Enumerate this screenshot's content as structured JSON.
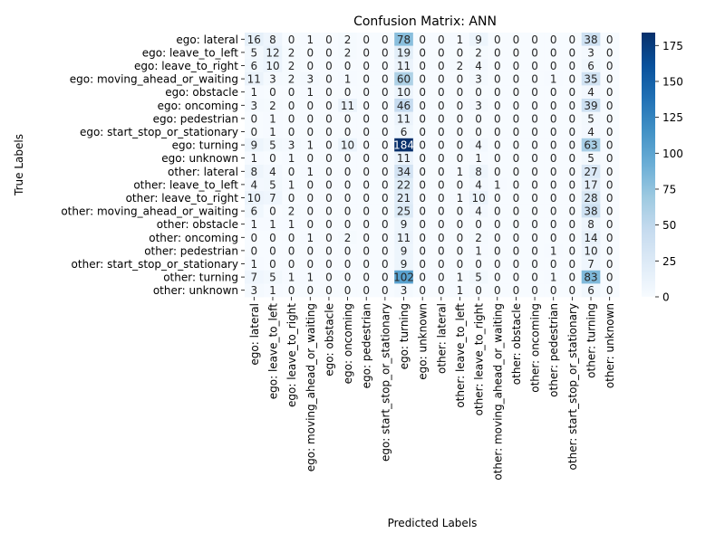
{
  "chart_data": {
    "type": "heatmap",
    "title": "Confusion Matrix: ANN",
    "xlabel": "Predicted Labels",
    "ylabel": "True Labels",
    "labels": [
      "ego: lateral",
      "ego: leave_to_left",
      "ego: leave_to_right",
      "ego: moving_ahead_or_waiting",
      "ego: obstacle",
      "ego: oncoming",
      "ego: pedestrian",
      "ego: start_stop_or_stationary",
      "ego: turning",
      "ego: unknown",
      "other: lateral",
      "other: leave_to_left",
      "other: leave_to_right",
      "other: moving_ahead_or_waiting",
      "other: obstacle",
      "other: oncoming",
      "other: pedestrian",
      "other: start_stop_or_stationary",
      "other: turning",
      "other: unknown"
    ],
    "matrix": [
      [
        16,
        8,
        0,
        1,
        0,
        2,
        0,
        0,
        78,
        0,
        0,
        1,
        9,
        0,
        0,
        0,
        0,
        0,
        38,
        0
      ],
      [
        5,
        12,
        2,
        0,
        0,
        2,
        0,
        0,
        19,
        0,
        0,
        0,
        2,
        0,
        0,
        0,
        0,
        0,
        3,
        0
      ],
      [
        6,
        10,
        2,
        0,
        0,
        0,
        0,
        0,
        11,
        0,
        0,
        2,
        4,
        0,
        0,
        0,
        0,
        0,
        6,
        0
      ],
      [
        11,
        3,
        2,
        3,
        0,
        1,
        0,
        0,
        60,
        0,
        0,
        0,
        3,
        0,
        0,
        0,
        1,
        0,
        35,
        0
      ],
      [
        1,
        0,
        0,
        1,
        0,
        0,
        0,
        0,
        10,
        0,
        0,
        0,
        0,
        0,
        0,
        0,
        0,
        0,
        4,
        0
      ],
      [
        3,
        2,
        0,
        0,
        0,
        11,
        0,
        0,
        46,
        0,
        0,
        0,
        3,
        0,
        0,
        0,
        0,
        0,
        39,
        0
      ],
      [
        0,
        1,
        0,
        0,
        0,
        0,
        0,
        0,
        11,
        0,
        0,
        0,
        0,
        0,
        0,
        0,
        0,
        0,
        5,
        0
      ],
      [
        0,
        1,
        0,
        0,
        0,
        0,
        0,
        0,
        6,
        0,
        0,
        0,
        0,
        0,
        0,
        0,
        0,
        0,
        4,
        0
      ],
      [
        9,
        5,
        3,
        1,
        0,
        10,
        0,
        0,
        184,
        0,
        0,
        0,
        4,
        0,
        0,
        0,
        0,
        0,
        63,
        0
      ],
      [
        1,
        0,
        1,
        0,
        0,
        0,
        0,
        0,
        11,
        0,
        0,
        0,
        1,
        0,
        0,
        0,
        0,
        0,
        5,
        0
      ],
      [
        8,
        4,
        0,
        1,
        0,
        0,
        0,
        0,
        34,
        0,
        0,
        1,
        8,
        0,
        0,
        0,
        0,
        0,
        27,
        0
      ],
      [
        4,
        5,
        1,
        0,
        0,
        0,
        0,
        0,
        22,
        0,
        0,
        0,
        4,
        1,
        0,
        0,
        0,
        0,
        17,
        0
      ],
      [
        10,
        7,
        0,
        0,
        0,
        0,
        0,
        0,
        21,
        0,
        0,
        1,
        10,
        0,
        0,
        0,
        0,
        0,
        28,
        0
      ],
      [
        6,
        0,
        2,
        0,
        0,
        0,
        0,
        0,
        25,
        0,
        0,
        0,
        4,
        0,
        0,
        0,
        0,
        0,
        38,
        0
      ],
      [
        1,
        1,
        1,
        0,
        0,
        0,
        0,
        0,
        9,
        0,
        0,
        0,
        0,
        0,
        0,
        0,
        0,
        0,
        8,
        0
      ],
      [
        0,
        0,
        0,
        1,
        0,
        2,
        0,
        0,
        11,
        0,
        0,
        0,
        2,
        0,
        0,
        0,
        0,
        0,
        14,
        0
      ],
      [
        0,
        0,
        0,
        0,
        0,
        0,
        0,
        0,
        9,
        0,
        0,
        0,
        1,
        0,
        0,
        0,
        1,
        0,
        10,
        0
      ],
      [
        1,
        0,
        0,
        0,
        0,
        0,
        0,
        0,
        9,
        0,
        0,
        0,
        0,
        0,
        0,
        0,
        0,
        0,
        7,
        0
      ],
      [
        7,
        5,
        1,
        1,
        0,
        0,
        0,
        0,
        102,
        0,
        0,
        1,
        5,
        0,
        0,
        0,
        1,
        0,
        83,
        0
      ],
      [
        3,
        1,
        0,
        0,
        0,
        0,
        0,
        0,
        3,
        0,
        0,
        1,
        0,
        0,
        0,
        0,
        0,
        0,
        6,
        0
      ]
    ],
    "colormap": "Blues",
    "vmin": 0,
    "vmax": 184,
    "colorbar_ticks": [
      0,
      25,
      50,
      75,
      100,
      125,
      150,
      175
    ]
  }
}
